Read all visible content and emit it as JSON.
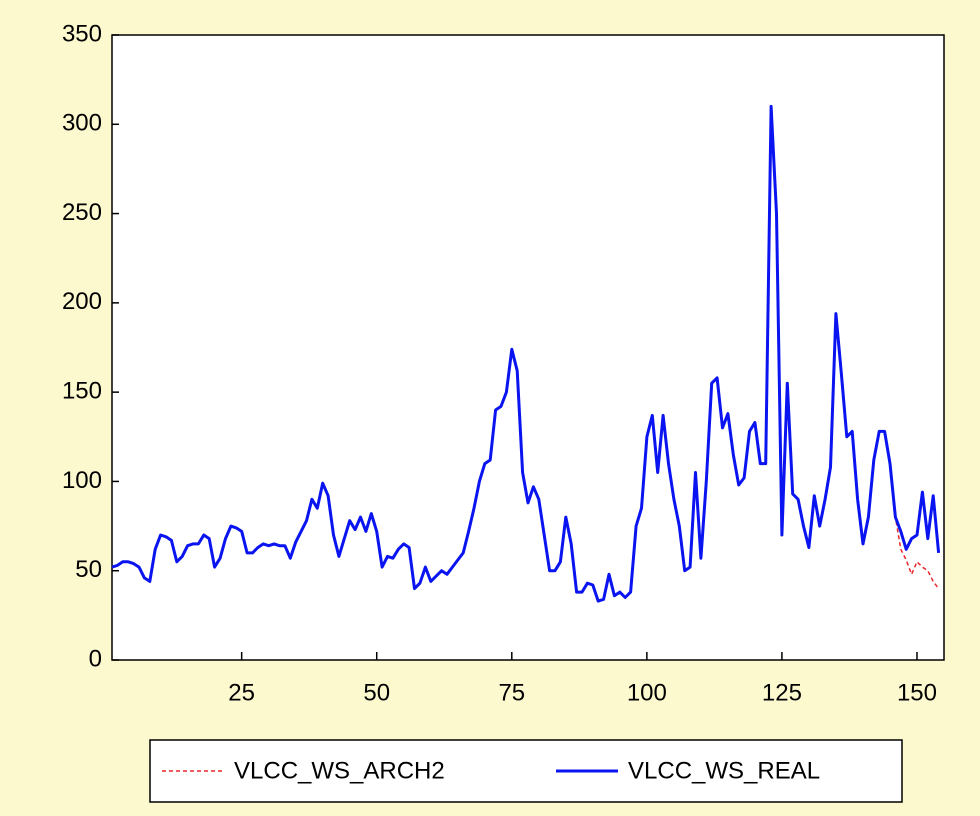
{
  "chart_data": {
    "type": "line",
    "x": [
      1,
      2,
      3,
      4,
      5,
      6,
      7,
      8,
      9,
      10,
      11,
      12,
      13,
      14,
      15,
      16,
      17,
      18,
      19,
      20,
      21,
      22,
      23,
      24,
      25,
      26,
      27,
      28,
      29,
      30,
      31,
      32,
      33,
      34,
      35,
      36,
      37,
      38,
      39,
      40,
      41,
      42,
      43,
      44,
      45,
      46,
      47,
      48,
      49,
      50,
      51,
      52,
      53,
      54,
      55,
      56,
      57,
      58,
      59,
      60,
      61,
      62,
      63,
      64,
      65,
      66,
      67,
      68,
      69,
      70,
      71,
      72,
      73,
      74,
      75,
      76,
      77,
      78,
      79,
      80,
      81,
      82,
      83,
      84,
      85,
      86,
      87,
      88,
      89,
      90,
      91,
      92,
      93,
      94,
      95,
      96,
      97,
      98,
      99,
      100,
      101,
      102,
      103,
      104,
      105,
      106,
      107,
      108,
      109,
      110,
      111,
      112,
      113,
      114,
      115,
      116,
      117,
      118,
      119,
      120,
      121,
      122,
      123,
      124,
      125,
      126,
      127,
      128,
      129,
      130,
      131,
      132,
      133,
      134,
      135,
      136,
      137,
      138,
      139,
      140,
      141,
      142,
      143,
      144,
      145,
      146,
      147,
      148,
      149,
      150,
      151,
      152,
      153,
      154
    ],
    "series": [
      {
        "name": "VLCC_WS_ARCH2",
        "color": "#e8262b",
        "dashed": true,
        "values": [
          52,
          53,
          55,
          55,
          54,
          52,
          46,
          44,
          62,
          70,
          69,
          67,
          55,
          58,
          64,
          65,
          65,
          70,
          68,
          52,
          57,
          68,
          75,
          74,
          72,
          60,
          60,
          63,
          65,
          64,
          65,
          64,
          64,
          57,
          66,
          72,
          78,
          90,
          85,
          99,
          92,
          70,
          58,
          68,
          78,
          73,
          80,
          72,
          82,
          72,
          52,
          58,
          57,
          62,
          65,
          63,
          40,
          43,
          52,
          44,
          47,
          50,
          48,
          52,
          56,
          60,
          72,
          85,
          100,
          110,
          112,
          140,
          142,
          150,
          174,
          162,
          105,
          88,
          97,
          90,
          70,
          50,
          50,
          55,
          80,
          65,
          38,
          38,
          43,
          42,
          33,
          34,
          48,
          36,
          38,
          35,
          38,
          75,
          85,
          125,
          137,
          105,
          137,
          110,
          90,
          75,
          50,
          52,
          105,
          57,
          100,
          155,
          158,
          130,
          138,
          115,
          98,
          102,
          128,
          133,
          110,
          110,
          310,
          250,
          70,
          155,
          93,
          90,
          75,
          63,
          92,
          75,
          90,
          108,
          194,
          160,
          125,
          128,
          90,
          65,
          80,
          112,
          128,
          128,
          110,
          80,
          62,
          56,
          48,
          55,
          52,
          50,
          44,
          40
        ]
      },
      {
        "name": "VLCC_WS_REAL",
        "color": "#0a14f0",
        "dashed": false,
        "values": [
          52,
          53,
          55,
          55,
          54,
          52,
          46,
          44,
          62,
          70,
          69,
          67,
          55,
          58,
          64,
          65,
          65,
          70,
          68,
          52,
          57,
          68,
          75,
          74,
          72,
          60,
          60,
          63,
          65,
          64,
          65,
          64,
          64,
          57,
          66,
          72,
          78,
          90,
          85,
          99,
          92,
          70,
          58,
          68,
          78,
          73,
          80,
          72,
          82,
          72,
          52,
          58,
          57,
          62,
          65,
          63,
          40,
          43,
          52,
          44,
          47,
          50,
          48,
          52,
          56,
          60,
          72,
          85,
          100,
          110,
          112,
          140,
          142,
          150,
          174,
          162,
          105,
          88,
          97,
          90,
          70,
          50,
          50,
          55,
          80,
          65,
          38,
          38,
          43,
          42,
          33,
          34,
          48,
          36,
          38,
          35,
          38,
          75,
          85,
          125,
          137,
          105,
          137,
          110,
          90,
          75,
          50,
          52,
          105,
          57,
          100,
          155,
          158,
          130,
          138,
          115,
          98,
          102,
          128,
          133,
          110,
          110,
          310,
          250,
          70,
          155,
          93,
          90,
          75,
          63,
          92,
          75,
          90,
          108,
          194,
          160,
          125,
          128,
          90,
          65,
          80,
          112,
          128,
          128,
          110,
          80,
          72,
          62,
          68,
          70,
          94,
          68,
          92,
          60
        ]
      }
    ],
    "xlim": [
      1,
      155
    ],
    "xticks": [
      25,
      50,
      75,
      100,
      125,
      150
    ],
    "ylim": [
      0,
      350
    ],
    "yticks": [
      0,
      50,
      100,
      150,
      200,
      250,
      300,
      350
    ],
    "grid": false,
    "legend": "bottom"
  }
}
